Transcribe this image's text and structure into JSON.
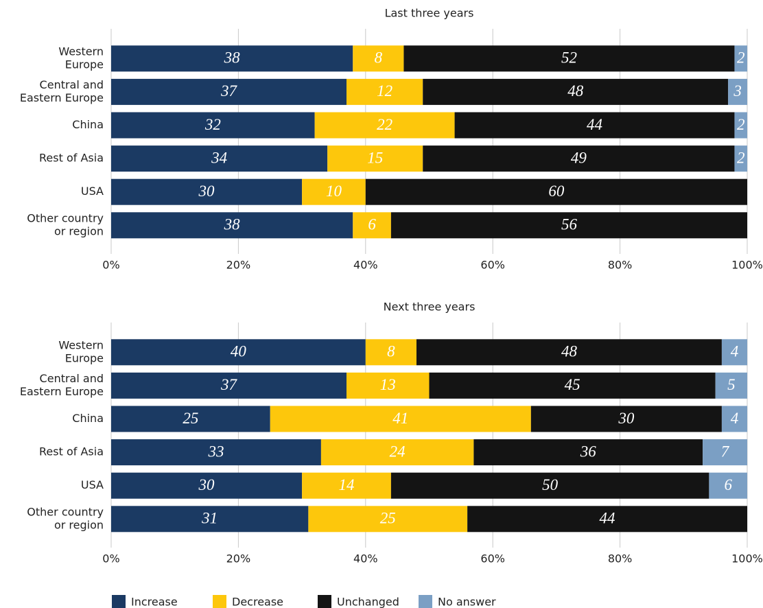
{
  "chart_data": [
    {
      "type": "stacked-bar-horizontal",
      "title": "Last three years",
      "categories": [
        [
          "Western",
          "Europe"
        ],
        [
          "Central and",
          "Eastern Europe"
        ],
        [
          "China"
        ],
        [
          "Rest of Asia"
        ],
        [
          "USA"
        ],
        [
          "Other country",
          "or region"
        ]
      ],
      "series": [
        {
          "name": "Increase",
          "color": "#1b3a63",
          "values": [
            38,
            37,
            32,
            34,
            30,
            38
          ]
        },
        {
          "name": "Decrease",
          "color": "#fdc70c",
          "values": [
            8,
            12,
            22,
            15,
            10,
            6
          ]
        },
        {
          "name": "Unchanged",
          "color": "#141414",
          "values": [
            52,
            48,
            44,
            49,
            60,
            56
          ]
        },
        {
          "name": "No answer",
          "color": "#7b9fc4",
          "values": [
            2,
            3,
            2,
            2,
            null,
            null
          ]
        }
      ],
      "xlim": [
        0,
        100
      ],
      "xticks": [
        {
          "value": 0,
          "label": "0%"
        },
        {
          "value": 20,
          "label": "20%"
        },
        {
          "value": 40,
          "label": "40%"
        },
        {
          "value": 60,
          "label": "60%"
        },
        {
          "value": 80,
          "label": "80%"
        },
        {
          "value": 100,
          "label": "100%"
        }
      ],
      "grid": true
    },
    {
      "type": "stacked-bar-horizontal",
      "title": "Next three years",
      "categories": [
        [
          "Western",
          "Europe"
        ],
        [
          "Central and",
          "Eastern Europe"
        ],
        [
          "China"
        ],
        [
          "Rest of Asia"
        ],
        [
          "USA"
        ],
        [
          "Other country",
          "or region"
        ]
      ],
      "series": [
        {
          "name": "Increase",
          "color": "#1b3a63",
          "values": [
            40,
            37,
            25,
            33,
            30,
            31
          ]
        },
        {
          "name": "Decrease",
          "color": "#fdc70c",
          "values": [
            8,
            13,
            41,
            24,
            14,
            25
          ]
        },
        {
          "name": "Unchanged",
          "color": "#141414",
          "values": [
            48,
            45,
            30,
            36,
            50,
            44
          ]
        },
        {
          "name": "No answer",
          "color": "#7b9fc4",
          "values": [
            4,
            5,
            4,
            7,
            6,
            null
          ]
        }
      ],
      "xlim": [
        0,
        100
      ],
      "xticks": [
        {
          "value": 0,
          "label": "0%"
        },
        {
          "value": 20,
          "label": "20%"
        },
        {
          "value": 40,
          "label": "40%"
        },
        {
          "value": 60,
          "label": "60%"
        },
        {
          "value": 80,
          "label": "80%"
        },
        {
          "value": 100,
          "label": "100%"
        }
      ],
      "grid": true
    }
  ]
}
